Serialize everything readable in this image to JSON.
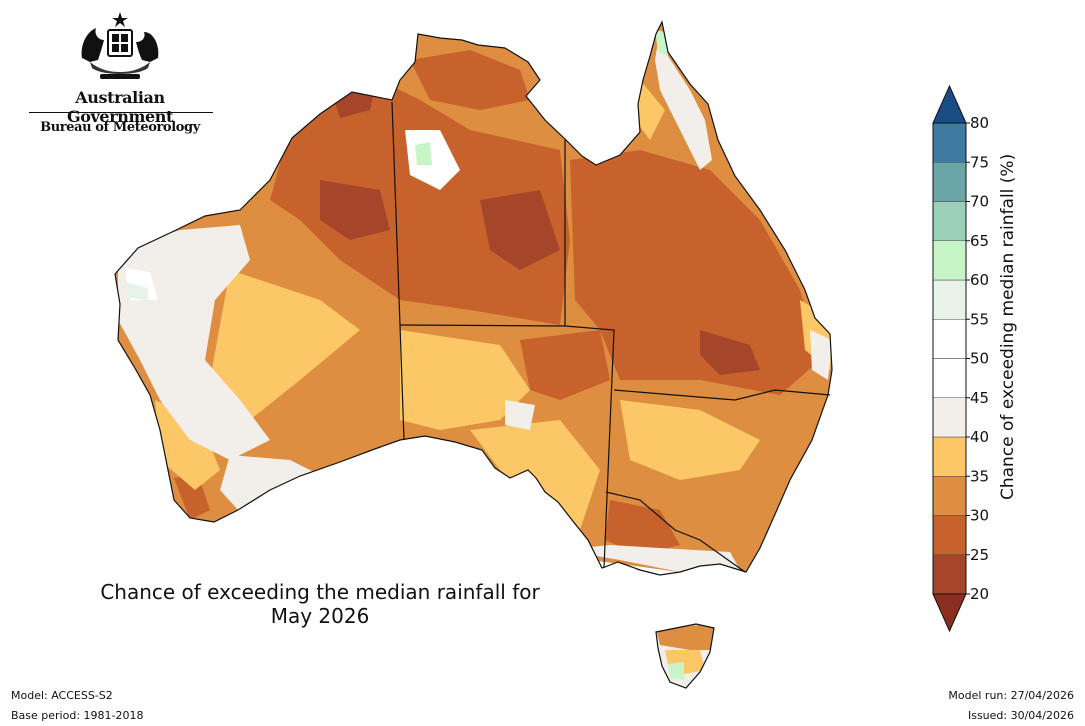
{
  "logo": {
    "government": "Australian Government",
    "agency": "Bureau of Meteorology"
  },
  "map": {
    "title_line1": "Chance of exceeding the median rainfall for",
    "title_line2": "May 2026",
    "colorbar_label": "Chance of exceeding median rainfall (%)",
    "colorbar_ticks": [
      "20",
      "25",
      "30",
      "35",
      "40",
      "45",
      "50",
      "55",
      "60",
      "65",
      "70",
      "75",
      "80"
    ],
    "colorbar_colors": [
      "#a5462a",
      "#c7622d",
      "#dd8e40",
      "#fcc766",
      "#f2eeea",
      "#ffffff",
      "#ffffff",
      "#e8f3e8",
      "#c8f5c8",
      "#9ad0b8",
      "#6aa5a8",
      "#3f7aa0",
      "#1f5790"
    ],
    "colorbar_tail_low": "#8b2e20",
    "colorbar_tail_high": "#1a4d85"
  },
  "footer": {
    "model": "Model: ACCESS-S2",
    "base_period": "Base period: 1981-2018",
    "model_run": "Model run: 27/04/2026",
    "issued": "Issued: 30/04/2026"
  }
}
